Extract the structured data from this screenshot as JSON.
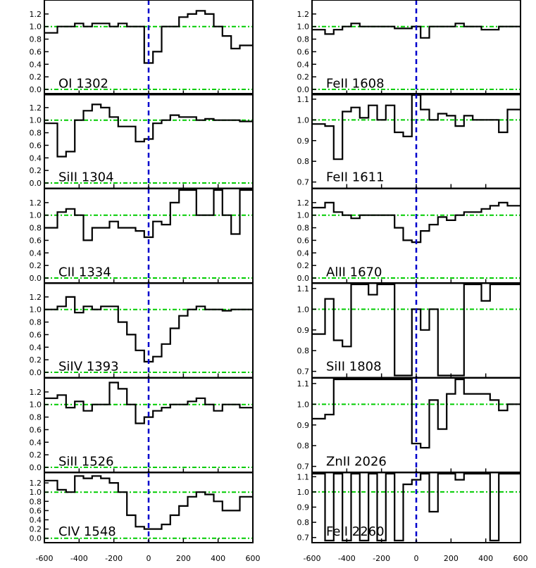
{
  "colors": {
    "axes": "#000000",
    "histogram": "#000000",
    "reference": "#00cc00",
    "zero_line": "#0000cc"
  },
  "chart_data": [
    {
      "type": "line",
      "label": "OI 1302",
      "column": "left",
      "row": 0,
      "ylim": [
        -0.05,
        1.4
      ],
      "yticks": [
        "0.0",
        "0.2",
        "0.4",
        "0.6",
        "0.8",
        "1.0",
        "1.2"
      ],
      "ref": [
        0,
        1
      ],
      "x": [
        -600,
        -550,
        -500,
        -450,
        -400,
        -350,
        -300,
        -250,
        -200,
        -150,
        -100,
        -50,
        0,
        50,
        100,
        150,
        200,
        250,
        300,
        350,
        400,
        450,
        500,
        550,
        600
      ],
      "y": [
        0.9,
        0.9,
        1.0,
        1.0,
        1.05,
        1.0,
        1.05,
        1.05,
        1.0,
        1.05,
        1.0,
        1.0,
        0.42,
        0.6,
        1.0,
        1.0,
        1.15,
        1.2,
        1.25,
        1.2,
        1.0,
        0.85,
        0.65,
        0.7,
        0.7
      ]
    },
    {
      "type": "line",
      "label": "SiII 1304",
      "column": "left",
      "row": 1,
      "ylim": [
        -0.05,
        1.4
      ],
      "yticks": [
        "0.0",
        "0.2",
        "0.4",
        "0.6",
        "0.8",
        "1.0",
        "1.2"
      ],
      "ref": [
        0,
        1
      ],
      "x": [
        -600,
        -550,
        -500,
        -450,
        -400,
        -350,
        -300,
        -250,
        -200,
        -150,
        -100,
        -50,
        0,
        50,
        100,
        150,
        200,
        250,
        300,
        350,
        400,
        450,
        500,
        550,
        600
      ],
      "y": [
        0.95,
        0.95,
        0.42,
        0.5,
        1.0,
        1.15,
        1.25,
        1.2,
        1.05,
        0.9,
        0.9,
        0.66,
        0.7,
        0.95,
        1.0,
        1.08,
        1.05,
        1.05,
        1.0,
        1.02,
        1.0,
        1.0,
        1.0,
        0.98,
        0.98
      ]
    },
    {
      "type": "line",
      "label": "CII 1334",
      "column": "left",
      "row": 2,
      "ylim": [
        -0.05,
        1.4
      ],
      "yticks": [
        "0.0",
        "0.2",
        "0.4",
        "0.6",
        "0.8",
        "1.0",
        "1.2"
      ],
      "ref": [
        0,
        1
      ],
      "x": [
        -600,
        -550,
        -500,
        -450,
        -400,
        -350,
        -300,
        -250,
        -200,
        -150,
        -100,
        -50,
        0,
        50,
        100,
        150,
        200,
        250,
        300,
        350,
        400,
        450,
        500,
        550,
        600
      ],
      "y": [
        0.8,
        0.8,
        1.05,
        1.1,
        1.0,
        0.6,
        0.8,
        0.8,
        0.9,
        0.8,
        0.8,
        0.75,
        0.65,
        0.9,
        0.85,
        1.2,
        1.45,
        1.45,
        1.0,
        1.0,
        1.45,
        1.0,
        0.7,
        1.45,
        1.45
      ]
    },
    {
      "type": "line",
      "label": "SiIV 1393",
      "column": "left",
      "row": 3,
      "ylim": [
        -0.05,
        1.4
      ],
      "yticks": [
        "0.0",
        "0.2",
        "0.4",
        "0.6",
        "0.8",
        "1.0",
        "1.2"
      ],
      "ref": [
        0,
        1
      ],
      "x": [
        -600,
        -550,
        -500,
        -450,
        -400,
        -350,
        -300,
        -250,
        -200,
        -150,
        -100,
        -50,
        0,
        50,
        100,
        150,
        200,
        250,
        300,
        350,
        400,
        450,
        500,
        550,
        600
      ],
      "y": [
        1.0,
        1.0,
        1.05,
        1.2,
        0.95,
        1.05,
        1.0,
        1.05,
        1.05,
        0.8,
        0.6,
        0.35,
        0.17,
        0.25,
        0.45,
        0.7,
        0.9,
        1.0,
        1.05,
        1.0,
        1.0,
        0.98,
        1.0,
        1.0,
        1.0
      ]
    },
    {
      "type": "line",
      "label": "SiII 1526",
      "column": "left",
      "row": 4,
      "ylim": [
        -0.05,
        1.4
      ],
      "yticks": [
        "0.0",
        "0.2",
        "0.4",
        "0.6",
        "0.8",
        "1.0",
        "1.2"
      ],
      "ref": [
        0,
        1
      ],
      "x": [
        -600,
        -550,
        -500,
        -450,
        -400,
        -350,
        -300,
        -250,
        -200,
        -150,
        -100,
        -50,
        0,
        50,
        100,
        150,
        200,
        250,
        300,
        350,
        400,
        450,
        500,
        550,
        600
      ],
      "y": [
        1.1,
        1.1,
        1.15,
        0.95,
        1.05,
        0.9,
        1.0,
        1.0,
        1.35,
        1.25,
        1.0,
        0.7,
        0.8,
        0.9,
        0.95,
        1.0,
        1.0,
        1.05,
        1.1,
        1.0,
        0.9,
        1.0,
        1.0,
        0.95,
        0.95
      ]
    },
    {
      "type": "line",
      "label": "CIV 1548",
      "column": "left",
      "row": 5,
      "ylim": [
        -0.05,
        1.4
      ],
      "yticks": [
        "0.0",
        "0.2",
        "0.4",
        "0.6",
        "0.8",
        "1.0",
        "1.2"
      ],
      "ref": [
        0,
        1
      ],
      "x": [
        -600,
        -550,
        -500,
        -450,
        -400,
        -350,
        -300,
        -250,
        -200,
        -150,
        -100,
        -50,
        0,
        50,
        100,
        150,
        200,
        250,
        300,
        350,
        400,
        450,
        500,
        550,
        600
      ],
      "y": [
        1.25,
        1.25,
        1.05,
        1.0,
        1.35,
        1.3,
        1.35,
        1.3,
        1.2,
        1.0,
        0.5,
        0.25,
        0.2,
        0.2,
        0.3,
        0.5,
        0.7,
        0.9,
        1.0,
        0.95,
        0.8,
        0.6,
        0.6,
        0.9,
        0.9
      ]
    },
    {
      "type": "line",
      "label": "FeII 1608",
      "column": "right",
      "row": 0,
      "ylim": [
        -0.05,
        1.4
      ],
      "yticks": [
        "0.0",
        "0.2",
        "0.4",
        "0.6",
        "0.8",
        "1.0",
        "1.2"
      ],
      "ref": [
        0,
        1
      ],
      "x": [
        -600,
        -550,
        -500,
        -450,
        -400,
        -350,
        -300,
        -250,
        -200,
        -150,
        -100,
        -50,
        0,
        50,
        100,
        150,
        200,
        250,
        300,
        350,
        400,
        450,
        500,
        550,
        600
      ],
      "y": [
        0.95,
        0.95,
        0.88,
        0.95,
        1.0,
        1.05,
        1.0,
        1.0,
        1.0,
        1.0,
        0.97,
        0.97,
        1.0,
        0.82,
        1.0,
        1.0,
        1.0,
        1.05,
        1.0,
        1.0,
        0.95,
        0.95,
        1.0,
        1.0,
        1.0
      ]
    },
    {
      "type": "line",
      "label": "FeII 1611",
      "column": "right",
      "row": 1,
      "ylim": [
        0.68,
        1.12
      ],
      "yticks": [
        "0.7",
        "0.8",
        "0.9",
        "1.0",
        "1.1"
      ],
      "ref": [
        1
      ],
      "x": [
        -600,
        -550,
        -500,
        -450,
        -400,
        -350,
        -300,
        -250,
        -200,
        -150,
        -100,
        -50,
        0,
        50,
        100,
        150,
        200,
        250,
        300,
        350,
        400,
        450,
        500,
        550,
        600
      ],
      "y": [
        0.98,
        0.98,
        0.97,
        0.81,
        1.04,
        1.06,
        1.01,
        1.07,
        1.0,
        1.07,
        0.94,
        0.92,
        1.12,
        1.05,
        1.0,
        1.03,
        1.02,
        0.97,
        1.02,
        1.0,
        1.0,
        1.0,
        0.94,
        1.05,
        1.05
      ]
    },
    {
      "type": "line",
      "label": "AlII 1670",
      "column": "right",
      "row": 2,
      "ylim": [
        -0.05,
        1.4
      ],
      "yticks": [
        "0.0",
        "0.2",
        "0.4",
        "0.6",
        "0.8",
        "1.0",
        "1.2"
      ],
      "ref": [
        0,
        1
      ],
      "x": [
        -600,
        -550,
        -500,
        -450,
        -400,
        -350,
        -300,
        -250,
        -200,
        -150,
        -100,
        -50,
        0,
        50,
        100,
        150,
        200,
        250,
        300,
        350,
        400,
        450,
        500,
        550,
        600
      ],
      "y": [
        1.12,
        1.12,
        1.2,
        1.05,
        1.0,
        0.95,
        1.0,
        1.0,
        1.0,
        1.0,
        0.8,
        0.6,
        0.57,
        0.75,
        0.85,
        0.97,
        0.92,
        1.0,
        1.05,
        1.05,
        1.1,
        1.15,
        1.2,
        1.15,
        1.15
      ]
    },
    {
      "type": "line",
      "label": "SiII 1808",
      "column": "right",
      "row": 3,
      "ylim": [
        0.68,
        1.12
      ],
      "yticks": [
        "0.7",
        "0.8",
        "0.9",
        "1.0",
        "1.1"
      ],
      "ref": [
        1
      ],
      "x": [
        -600,
        -550,
        -500,
        -450,
        -400,
        -350,
        -300,
        -250,
        -200,
        -150,
        -100,
        -50,
        0,
        50,
        100,
        150,
        200,
        250,
        300,
        350,
        400,
        450,
        500,
        550,
        600
      ],
      "y": [
        0.88,
        0.88,
        1.05,
        0.85,
        0.82,
        1.12,
        1.12,
        1.07,
        1.12,
        1.12,
        0.65,
        0.65,
        1.0,
        0.9,
        1.0,
        0.65,
        0.65,
        0.65,
        1.12,
        1.12,
        1.04,
        1.12,
        1.12,
        1.12,
        1.12
      ]
    },
    {
      "type": "line",
      "label": "ZnII 2026",
      "column": "right",
      "row": 4,
      "ylim": [
        0.68,
        1.12
      ],
      "yticks": [
        "0.7",
        "0.8",
        "0.9",
        "1.0",
        "1.1"
      ],
      "ref": [
        1
      ],
      "x": [
        -600,
        -550,
        -500,
        -450,
        -400,
        -350,
        -300,
        -250,
        -200,
        -150,
        -100,
        -50,
        0,
        50,
        100,
        150,
        200,
        250,
        300,
        350,
        400,
        450,
        500,
        550,
        600
      ],
      "y": [
        0.93,
        0.93,
        0.95,
        1.12,
        1.12,
        1.12,
        1.12,
        1.12,
        1.12,
        1.12,
        1.12,
        1.12,
        0.81,
        0.79,
        1.02,
        0.88,
        1.05,
        1.12,
        1.05,
        1.05,
        1.05,
        1.02,
        0.97,
        1.0,
        1.0
      ]
    },
    {
      "type": "line",
      "label": "FeII 2260",
      "column": "right",
      "row": 5,
      "ylim": [
        0.68,
        1.12
      ],
      "yticks": [
        "0.7",
        "0.8",
        "0.9",
        "1.0",
        "1.1"
      ],
      "ref": [
        1
      ],
      "x": [
        -600,
        -550,
        -500,
        -450,
        -400,
        -350,
        -300,
        -250,
        -200,
        -150,
        -100,
        -50,
        0,
        50,
        100,
        150,
        200,
        250,
        300,
        350,
        400,
        450,
        500,
        550,
        600
      ],
      "y": [
        1.12,
        1.12,
        0.65,
        1.12,
        0.65,
        1.12,
        0.65,
        1.12,
        0.65,
        1.12,
        0.65,
        1.05,
        1.08,
        1.12,
        0.87,
        1.12,
        1.12,
        1.08,
        1.12,
        1.12,
        1.12,
        0.65,
        1.12,
        1.12,
        1.12
      ]
    }
  ],
  "xaxis": {
    "ticks": [
      -600,
      -400,
      -200,
      0,
      200,
      400,
      600
    ],
    "tick_labels_left": [
      "-600",
      "-400",
      "-200",
      "0",
      "200",
      "400",
      "600"
    ],
    "tick_labels_right": [
      "-600",
      "-400",
      "-200",
      "0",
      "200",
      "400",
      "600"
    ]
  }
}
